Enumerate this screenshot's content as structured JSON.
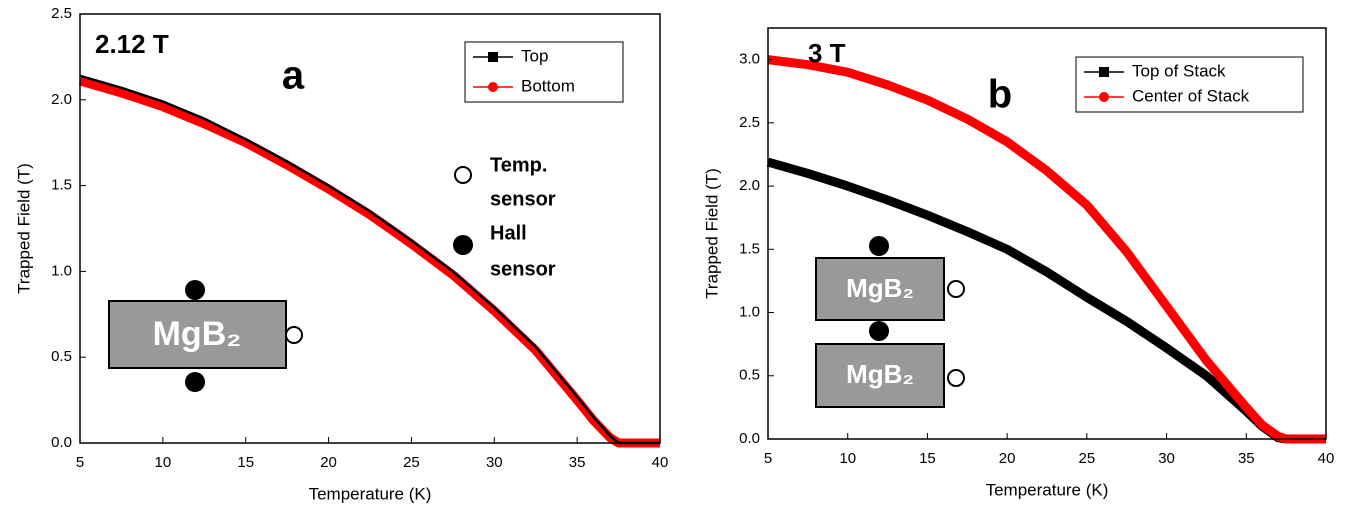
{
  "chart_data": [
    {
      "type": "line",
      "label": "2.12 T",
      "panel_label": "a",
      "xlabel": "Temperature (K)",
      "ylabel": "Trapped Field (T)",
      "x": [
        5,
        7.5,
        10,
        12.5,
        15,
        17.5,
        20,
        22.5,
        25,
        27.5,
        30,
        32.5,
        35,
        36,
        37,
        37.5,
        38,
        40
      ],
      "series": [
        {
          "name": "Top",
          "color": "#000000",
          "values": [
            2.14,
            2.07,
            1.99,
            1.89,
            1.77,
            1.64,
            1.5,
            1.35,
            1.18,
            1.0,
            0.79,
            0.56,
            0.27,
            0.15,
            0.04,
            0,
            0,
            0
          ]
        },
        {
          "name": "Bottom",
          "color": "#ff0000",
          "values": [
            2.11,
            2.04,
            1.96,
            1.86,
            1.75,
            1.62,
            1.48,
            1.33,
            1.16,
            0.98,
            0.77,
            0.54,
            0.25,
            0.13,
            0.03,
            0,
            0,
            0
          ]
        }
      ],
      "xlim": [
        5,
        40
      ],
      "xticks": [
        5,
        10,
        15,
        20,
        25,
        30,
        35,
        40
      ],
      "ylim": [
        0,
        2.5
      ],
      "yticks": [
        {
          "value": 0,
          "label": "0.0"
        },
        0.5,
        {
          "value": 1,
          "label": "1.0"
        },
        1.5,
        {
          "value": 2,
          "label": "2.0"
        },
        2.5
      ],
      "annotations": [
        "Temp.",
        "sensor",
        "Hall",
        "sensor"
      ],
      "diagram_labels": [
        "MgB₂"
      ]
    },
    {
      "type": "line",
      "label": "3 T",
      "panel_label": "b",
      "xlabel": "Temperature (K)",
      "ylabel": "Trapped Field (T)",
      "x": [
        5,
        7.5,
        10,
        12.5,
        15,
        17.5,
        20,
        22.5,
        25,
        27.5,
        30,
        32.5,
        35,
        36,
        37,
        37.5,
        38,
        40
      ],
      "series": [
        {
          "name": "Top of Stack",
          "color": "#000000",
          "values": [
            2.19,
            2.1,
            2.0,
            1.89,
            1.77,
            1.64,
            1.5,
            1.32,
            1.12,
            0.93,
            0.72,
            0.5,
            0.22,
            0.1,
            0.01,
            0,
            0,
            0
          ]
        },
        {
          "name": "Center of Stack",
          "color": "#ff0000",
          "values": [
            3.0,
            2.96,
            2.9,
            2.8,
            2.68,
            2.53,
            2.35,
            2.12,
            1.85,
            1.48,
            1.05,
            0.62,
            0.25,
            0.11,
            0.02,
            0,
            0,
            0
          ]
        }
      ],
      "xlim": [
        5,
        40
      ],
      "xticks": [
        5,
        10,
        15,
        20,
        25,
        30,
        35,
        40
      ],
      "ylim": [
        0,
        3.25
      ],
      "yticks": [
        {
          "value": 0,
          "label": "0.0"
        },
        0.5,
        {
          "value": 1,
          "label": "1.0"
        },
        1.5,
        {
          "value": 2,
          "label": "2.0"
        },
        2.5,
        {
          "value": 3,
          "label": "3.0"
        }
      ],
      "diagram_labels": [
        "MgB₂",
        "MgB₂"
      ]
    }
  ]
}
